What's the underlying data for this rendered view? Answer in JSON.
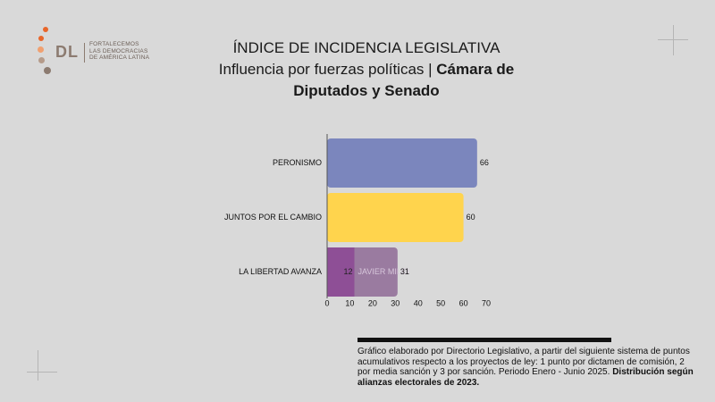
{
  "logo": {
    "initials": "DL",
    "lines": [
      "FORTALECEMOS",
      "LAS DEMOCRACIAS",
      "DE AMÉRICA LATINA"
    ]
  },
  "header": {
    "title_line1": "ÍNDICE DE INCIDENCIA LEGISLATIVA",
    "title_line2_normal": "Influencia por fuerzas políticas | ",
    "title_line2_bold": "Cámara de",
    "title_line3_bold": "Diputados y Senado"
  },
  "chart_data": {
    "type": "bar",
    "orientation": "horizontal",
    "categories": [
      "PERONISMO",
      "JUNTOS POR EL CAMBIO",
      "LA LIBERTAD AVANZA"
    ],
    "values": [
      66,
      60,
      31
    ],
    "colors": [
      "#7b86bd",
      "#ffd44d",
      "#9a7ba0"
    ],
    "sub_segment": {
      "category": "LA LIBERTAD AVANZA",
      "value": 12,
      "color": "#8e4f96",
      "label": "JAVIER MILEI"
    },
    "xlim": [
      0,
      70
    ],
    "xticks": [
      0,
      10,
      20,
      30,
      40,
      50,
      60,
      70
    ],
    "grid": false
  },
  "footnote": {
    "text": "Gráfico elaborado por Directorio Legislativo, a partir del siguiente sistema de puntos acumulativos respecto a los proyectos de ley: 1 punto por dictamen de comisión, 2 por media sanción y 3 por sanción. Periodo Enero - Junio 2025.",
    "bold_text": "Distribución según alianzas electorales de 2023."
  },
  "colors": {
    "background": "#d9d9d9",
    "logo_orange": "#e8662a",
    "logo_brown": "#8c7b70"
  }
}
